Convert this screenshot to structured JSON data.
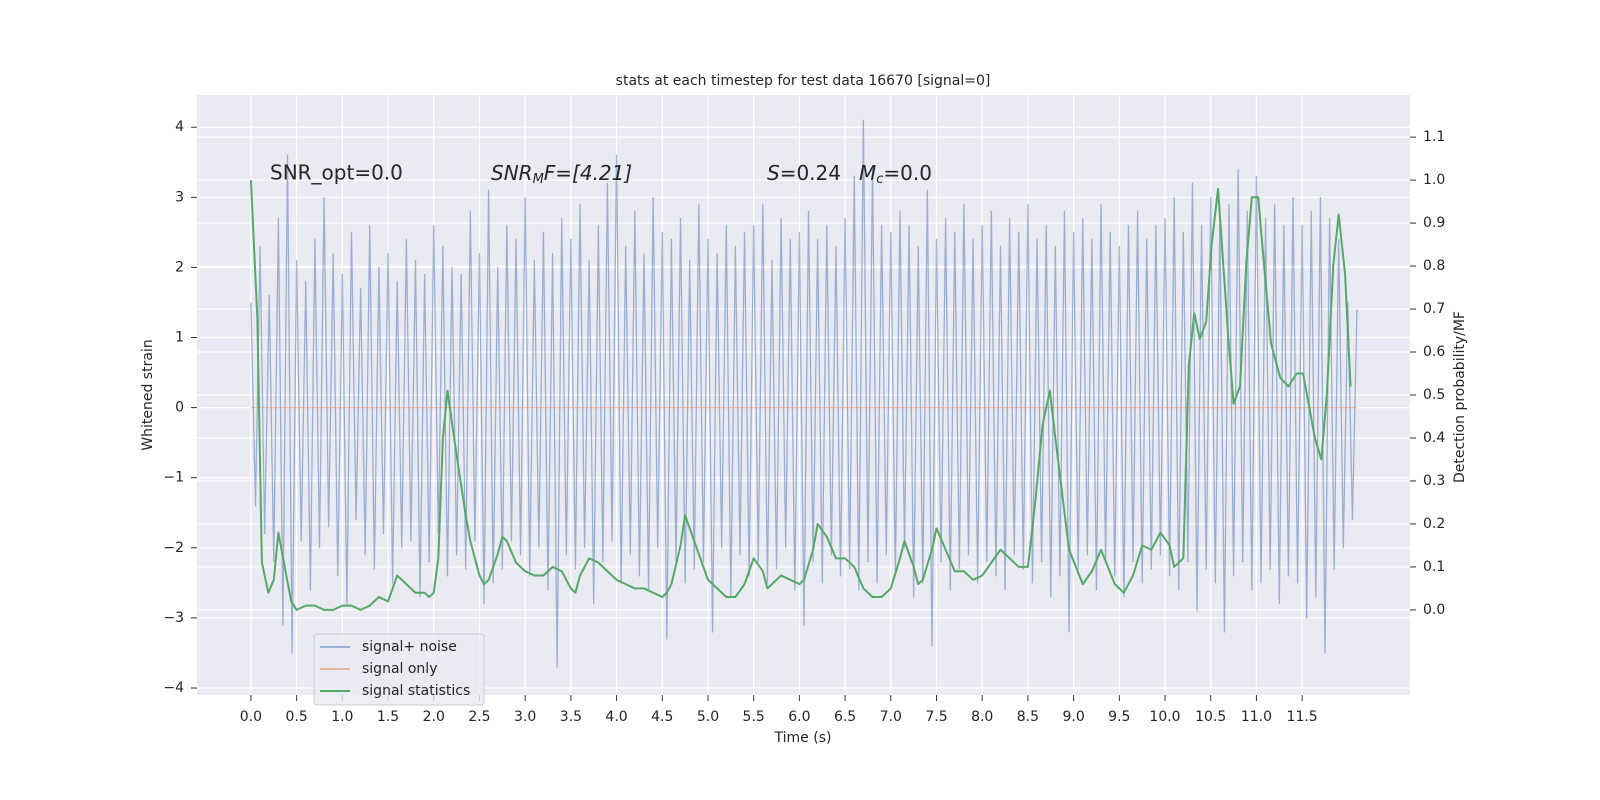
{
  "chart_data": {
    "type": "line",
    "title": "stats at each timestep for test data 16670 [signal=0]",
    "xlabel": "Time (s)",
    "ylabel": "Whitened strain",
    "y2label": "Detection probability/MF",
    "annotations": [
      {
        "text": "SNR_opt=0.0"
      },
      {
        "parts": [
          "SNR",
          "M",
          "F=[4.21]"
        ]
      },
      {
        "parts": [
          "S",
          "=0.24",
          "M",
          "c",
          "=0.0"
        ]
      }
    ],
    "grid": true,
    "legend": "lower left",
    "xlim": [
      -0.59,
      12.68
    ],
    "ylim": [
      -4.1,
      4.46
    ],
    "y2lim": [
      -0.198,
      1.198
    ],
    "xticks": [
      {
        "value": 0,
        "label": "0.0"
      },
      0.5,
      {
        "value": 1,
        "label": "1.0"
      },
      1.5,
      {
        "value": 2,
        "label": "2.0"
      },
      2.5,
      {
        "value": 3,
        "label": "3.0"
      },
      3.5,
      {
        "value": 4,
        "label": "4.0"
      },
      4.5,
      {
        "value": 5,
        "label": "5.0"
      },
      5.5,
      {
        "value": 6,
        "label": "6.0"
      },
      6.5,
      {
        "value": 7,
        "label": "7.0"
      },
      7.5,
      {
        "value": 8,
        "label": "8.0"
      },
      8.5,
      {
        "value": 9,
        "label": "9.0"
      },
      9.5,
      {
        "value": 10,
        "label": "10.0"
      },
      10.5,
      {
        "value": 11,
        "label": "11.0"
      },
      11.5
    ],
    "yticks": [
      {
        "value": -4,
        "label": "−4"
      },
      {
        "value": -3,
        "label": "−3"
      },
      {
        "value": -2,
        "label": "−2"
      },
      {
        "value": -1,
        "label": "−1"
      },
      0,
      1,
      2,
      3,
      4
    ],
    "y2ticks": [
      {
        "value": 0,
        "label": "0.0"
      },
      0.1,
      0.2,
      0.3,
      0.4,
      0.5,
      0.6,
      0.7,
      0.8,
      0.9,
      {
        "value": 1,
        "label": "1.0"
      },
      1.1
    ],
    "series": [
      {
        "name": "signal+ noise",
        "color": "#4c72b0",
        "alpha": 0.5,
        "x": [
          0,
          0.05,
          0.1,
          0.15,
          0.2,
          0.25,
          0.3,
          0.35,
          0.4,
          0.45,
          0.5,
          0.55,
          0.6,
          0.65,
          0.7,
          0.75,
          0.8,
          0.85,
          0.9,
          0.95,
          1.0,
          1.05,
          1.1,
          1.15,
          1.2,
          1.25,
          1.3,
          1.35,
          1.4,
          1.45,
          1.5,
          1.55,
          1.6,
          1.65,
          1.7,
          1.75,
          1.8,
          1.85,
          1.9,
          1.95,
          2.0,
          2.05,
          2.1,
          2.15,
          2.2,
          2.25,
          2.3,
          2.35,
          2.4,
          2.45,
          2.5,
          2.55,
          2.6,
          2.65,
          2.7,
          2.75,
          2.8,
          2.85,
          2.9,
          2.95,
          3.0,
          3.05,
          3.1,
          3.15,
          3.2,
          3.25,
          3.3,
          3.35,
          3.4,
          3.45,
          3.5,
          3.55,
          3.6,
          3.65,
          3.7,
          3.75,
          3.8,
          3.85,
          3.9,
          3.95,
          4.0,
          4.05,
          4.1,
          4.15,
          4.2,
          4.25,
          4.3,
          4.35,
          4.4,
          4.45,
          4.5,
          4.55,
          4.6,
          4.65,
          4.7,
          4.75,
          4.8,
          4.85,
          4.9,
          4.95,
          5.0,
          5.05,
          5.1,
          5.15,
          5.2,
          5.25,
          5.3,
          5.35,
          5.4,
          5.45,
          5.5,
          5.55,
          5.6,
          5.65,
          5.7,
          5.75,
          5.8,
          5.85,
          5.9,
          5.95,
          6.0,
          6.05,
          6.1,
          6.15,
          6.2,
          6.25,
          6.3,
          6.35,
          6.4,
          6.45,
          6.5,
          6.55,
          6.6,
          6.65,
          6.7,
          6.75,
          6.8,
          6.85,
          6.9,
          6.95,
          7.0,
          7.05,
          7.1,
          7.15,
          7.2,
          7.25,
          7.3,
          7.35,
          7.4,
          7.45,
          7.5,
          7.55,
          7.6,
          7.65,
          7.7,
          7.75,
          7.8,
          7.85,
          7.9,
          7.95,
          8.0,
          8.05,
          8.1,
          8.15,
          8.2,
          8.25,
          8.3,
          8.35,
          8.4,
          8.45,
          8.5,
          8.55,
          8.6,
          8.65,
          8.7,
          8.75,
          8.8,
          8.85,
          8.9,
          8.95,
          9.0,
          9.05,
          9.1,
          9.15,
          9.2,
          9.25,
          9.3,
          9.35,
          9.4,
          9.45,
          9.5,
          9.55,
          9.6,
          9.65,
          9.7,
          9.75,
          9.8,
          9.85,
          9.9,
          9.95,
          10.0,
          10.05,
          10.1,
          10.15,
          10.2,
          10.25,
          10.3,
          10.35,
          10.4,
          10.45,
          10.5,
          10.55,
          10.6,
          10.65,
          10.7,
          10.75,
          10.8,
          10.85,
          10.9,
          10.95,
          11.0,
          11.05,
          11.1,
          11.15,
          11.2,
          11.25,
          11.3,
          11.35,
          11.4,
          11.45,
          11.5,
          11.55,
          11.6,
          11.65,
          11.7,
          11.75,
          11.8,
          11.85,
          11.9,
          11.95,
          12.0,
          12.05,
          12.1
        ],
        "values": [
          1.5,
          -1.4,
          2.3,
          -1.8,
          1.6,
          -2.2,
          2.7,
          -3.1,
          3.6,
          -3.5,
          2.1,
          -1.9,
          1.8,
          -2.6,
          2.4,
          -2.0,
          3.0,
          -1.7,
          2.2,
          -2.4,
          1.9,
          -2.8,
          2.5,
          -1.6,
          1.7,
          -2.1,
          2.6,
          -2.3,
          2.0,
          -1.8,
          2.2,
          -2.5,
          1.8,
          -2.0,
          2.4,
          -1.9,
          2.1,
          -2.7,
          1.9,
          -2.2,
          2.6,
          -1.8,
          2.3,
          -2.4,
          2.0,
          -2.1,
          1.9,
          -2.3,
          2.8,
          -1.9,
          2.2,
          -2.8,
          3.1,
          -2.5,
          2.0,
          -2.3,
          2.6,
          -1.9,
          2.4,
          -2.1,
          3.0,
          -2.4,
          2.1,
          -2.0,
          2.5,
          -2.6,
          2.2,
          -3.7,
          2.7,
          -2.1,
          2.4,
          -2.3,
          2.9,
          -2.0,
          2.1,
          -2.8,
          2.6,
          -2.2,
          3.2,
          -1.9,
          3.6,
          -2.5,
          2.3,
          -2.1,
          2.8,
          -2.4,
          2.2,
          -2.6,
          3.0,
          -2.0,
          2.5,
          -3.3,
          2.4,
          -2.2,
          2.7,
          -2.5,
          2.1,
          -2.3,
          2.9,
          -2.2,
          2.4,
          -3.2,
          2.2,
          -2.0,
          2.6,
          -2.7,
          2.3,
          -2.1,
          2.5,
          -2.4,
          2.6,
          -2.2,
          2.9,
          -2.5,
          2.1,
          -2.3,
          2.7,
          -2.0,
          2.4,
          -2.6,
          2.5,
          -3.1,
          2.8,
          -2.2,
          2.4,
          -2.5,
          2.6,
          -2.1,
          2.3,
          -2.4,
          2.7,
          -2.3,
          3.3,
          -2.6,
          4.1,
          -2.2,
          3.4,
          -2.5,
          2.6,
          -2.1,
          2.5,
          -2.4,
          2.8,
          -2.0,
          2.6,
          -2.7,
          2.3,
          -2.5,
          3.1,
          -3.4,
          2.4,
          -2.2,
          2.7,
          -2.6,
          2.5,
          -2.3,
          2.9,
          -2.1,
          2.4,
          -2.5,
          2.6,
          -2.2,
          2.8,
          -2.4,
          2.3,
          -2.6,
          2.7,
          -2.1,
          2.5,
          -2.3,
          2.9,
          -2.5,
          2.4,
          -2.2,
          2.6,
          -2.7,
          2.3,
          -2.4,
          2.8,
          -3.2,
          2.5,
          -2.3,
          2.7,
          -2.1,
          2.4,
          -2.6,
          2.9,
          -2.2,
          2.5,
          -2.4,
          2.3,
          -2.7,
          2.6,
          -2.2,
          2.8,
          -2.5,
          2.4,
          -2.3,
          2.6,
          -2.1,
          2.7,
          -2.4,
          3.0,
          -2.6,
          2.5,
          -2.2,
          3.2,
          -2.9,
          2.6,
          -2.3,
          3.0,
          -2.5,
          2.7,
          -3.2,
          2.9,
          -2.4,
          3.4,
          -2.2,
          2.8,
          -2.6,
          3.3,
          -2.5,
          2.7,
          -2.3,
          2.9,
          -2.8,
          2.6,
          -2.4,
          3.0,
          -2.5,
          2.6,
          -3.0,
          2.8,
          -2.7,
          3.0,
          -3.5,
          2.7,
          -2.3,
          2.4,
          -2.0,
          1.5,
          -1.6,
          1.4
        ]
      },
      {
        "name": "signal only",
        "color": "#dd8452",
        "alpha": 0.5,
        "x": [
          0,
          12.1
        ],
        "values": [
          0,
          0
        ]
      },
      {
        "name": "signal statistics",
        "color": "#55a868",
        "alpha": 1,
        "axis": "y2",
        "x": [
          0,
          0.07,
          0.12,
          0.19,
          0.25,
          0.3,
          0.37,
          0.44,
          0.5,
          0.6,
          0.7,
          0.8,
          0.9,
          1.0,
          1.1,
          1.2,
          1.3,
          1.4,
          1.5,
          1.55,
          1.6,
          1.7,
          1.8,
          1.9,
          1.95,
          2.0,
          2.05,
          2.1,
          2.15,
          2.25,
          2.35,
          2.4,
          2.5,
          2.55,
          2.6,
          2.7,
          2.75,
          2.8,
          2.9,
          3.0,
          3.1,
          3.2,
          3.3,
          3.4,
          3.5,
          3.55,
          3.6,
          3.7,
          3.8,
          3.9,
          4.0,
          4.1,
          4.2,
          4.3,
          4.4,
          4.5,
          4.55,
          4.6,
          4.7,
          4.75,
          4.8,
          4.9,
          5.0,
          5.1,
          5.2,
          5.3,
          5.4,
          5.5,
          5.6,
          5.65,
          5.7,
          5.8,
          5.9,
          6.0,
          6.05,
          6.15,
          6.2,
          6.3,
          6.4,
          6.5,
          6.6,
          6.7,
          6.8,
          6.9,
          7.0,
          7.1,
          7.15,
          7.25,
          7.3,
          7.35,
          7.45,
          7.5,
          7.6,
          7.7,
          7.8,
          7.9,
          8.0,
          8.1,
          8.2,
          8.3,
          8.4,
          8.5,
          8.58,
          8.66,
          8.74,
          8.8,
          8.95,
          9.1,
          9.2,
          9.3,
          9.45,
          9.55,
          9.65,
          9.75,
          9.85,
          9.95,
          10.05,
          10.1,
          10.2,
          10.26,
          10.32,
          10.38,
          10.45,
          10.51,
          10.58,
          10.69,
          10.75,
          10.82,
          10.89,
          10.95,
          11.02,
          11.08,
          11.16,
          11.26,
          11.35,
          11.44,
          11.51,
          11.64,
          11.71,
          11.77,
          11.84,
          11.9,
          11.97,
          12.03
        ],
        "values": [
          1.0,
          0.68,
          0.11,
          0.04,
          0.07,
          0.18,
          0.1,
          0.02,
          0.0,
          0.01,
          0.01,
          0.0,
          0.0,
          0.01,
          0.01,
          0.0,
          0.01,
          0.03,
          0.02,
          0.05,
          0.08,
          0.06,
          0.04,
          0.04,
          0.03,
          0.04,
          0.12,
          0.4,
          0.51,
          0.36,
          0.22,
          0.16,
          0.08,
          0.06,
          0.07,
          0.13,
          0.17,
          0.16,
          0.11,
          0.09,
          0.08,
          0.08,
          0.1,
          0.09,
          0.05,
          0.04,
          0.08,
          0.12,
          0.11,
          0.09,
          0.07,
          0.06,
          0.05,
          0.05,
          0.04,
          0.03,
          0.04,
          0.06,
          0.15,
          0.22,
          0.19,
          0.13,
          0.07,
          0.05,
          0.03,
          0.03,
          0.06,
          0.12,
          0.09,
          0.05,
          0.06,
          0.08,
          0.07,
          0.06,
          0.07,
          0.14,
          0.2,
          0.17,
          0.12,
          0.12,
          0.1,
          0.05,
          0.03,
          0.03,
          0.05,
          0.12,
          0.16,
          0.1,
          0.06,
          0.07,
          0.14,
          0.19,
          0.14,
          0.09,
          0.09,
          0.07,
          0.08,
          0.11,
          0.14,
          0.12,
          0.1,
          0.1,
          0.25,
          0.43,
          0.51,
          0.4,
          0.14,
          0.06,
          0.09,
          0.14,
          0.06,
          0.04,
          0.08,
          0.15,
          0.14,
          0.18,
          0.15,
          0.1,
          0.12,
          0.57,
          0.69,
          0.63,
          0.67,
          0.85,
          0.98,
          0.64,
          0.48,
          0.52,
          0.81,
          0.96,
          0.96,
          0.81,
          0.62,
          0.54,
          0.52,
          0.55,
          0.55,
          0.4,
          0.35,
          0.5,
          0.8,
          0.92,
          0.78,
          0.52
        ]
      }
    ]
  }
}
